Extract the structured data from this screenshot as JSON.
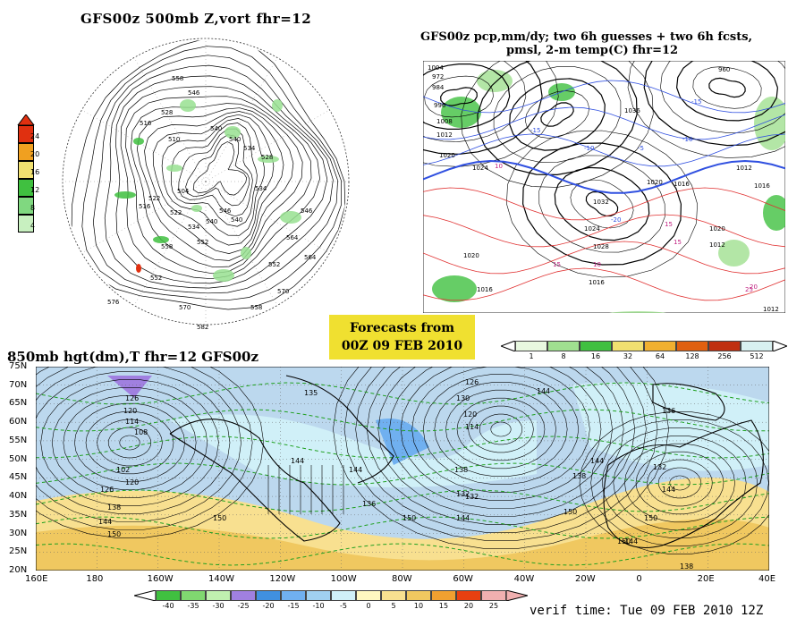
{
  "titles": {
    "panel1": "GFS00z   500mb Z,vort     fhr=12",
    "panel2_line1": "GFS00z pcp,mm/dy; two 6h guesses + two 6h fcsts,",
    "panel2_line2": "pmsl, 2-m temp(C)  fhr=12",
    "panel3": "850mb hgt(dm),T   fhr=12 GFS00z"
  },
  "forecast_box": {
    "line1": "Forecasts from",
    "line2": "00Z 09 FEB 2010"
  },
  "verif_time": "verif time: Tue 09 FEB 2010 12Z",
  "vort_colorbar": {
    "labels": [
      "24",
      "20",
      "16",
      "12",
      "8",
      "4"
    ],
    "colors": [
      "#e03010",
      "#f0a020",
      "#f0e070",
      "#40c040",
      "#80d880",
      "#c8f0c0"
    ]
  },
  "pcp_colorbar": {
    "labels": [
      "1",
      "8",
      "16",
      "32",
      "64",
      "128",
      "256",
      "512"
    ],
    "colors": [
      "#e8f8e0",
      "#a0e090",
      "#40c040",
      "#f0e070",
      "#f0b030",
      "#e06010",
      "#c03010",
      "#d8f0f0"
    ]
  },
  "temp_colorbar": {
    "labels": [
      "-40",
      "-35",
      "-30",
      "-25",
      "-20",
      "-15",
      "-10",
      "-5",
      "0",
      "5",
      "10",
      "15",
      "20",
      "25"
    ],
    "colors": [
      "#40c040",
      "#80d870",
      "#c0f0b0",
      "#a080e0",
      "#4090e0",
      "#70b0f0",
      "#a0d0f0",
      "#d0f0f8",
      "#fff8c0",
      "#f8e090",
      "#f0c860",
      "#f0a030",
      "#e84010",
      "#f0b0b0"
    ]
  },
  "map850": {
    "lat_labels": [
      "75N",
      "70N",
      "65N",
      "60N",
      "55N",
      "50N",
      "45N",
      "40N",
      "35N",
      "30N",
      "25N",
      "20N"
    ],
    "lon_labels": [
      "160E",
      "180",
      "160W",
      "140W",
      "120W",
      "100W",
      "80W",
      "60W",
      "40W",
      "20W",
      "0",
      "20E",
      "40E"
    ],
    "contour_labels": [
      "126",
      "120",
      "114",
      "108",
      "102",
      "120",
      "126",
      "138",
      "144",
      "150",
      "135",
      "144",
      "150",
      "144",
      "136",
      "150",
      "144",
      "132",
      "138",
      "126",
      "120",
      "114",
      "132",
      "138",
      "150",
      "144",
      "144",
      "150",
      "132",
      "136",
      "138",
      "144",
      "150",
      "130",
      "144"
    ]
  },
  "polar": {
    "contour_labels": [
      "558",
      "546",
      "528",
      "516",
      "510",
      "540",
      "540",
      "534",
      "522",
      "504",
      "516",
      "552",
      "534",
      "540",
      "522",
      "558",
      "546",
      "534",
      "528",
      "540",
      "552",
      "570",
      "576",
      "570",
      "558",
      "582",
      "564",
      "546",
      "552",
      "564"
    ]
  },
  "na_map": {
    "contour_labels": [
      "1004",
      "972",
      "984",
      "996",
      "1008",
      "1012",
      "1020",
      "1024",
      "1020",
      "1016",
      "1032",
      "1028",
      "1024",
      "1036",
      "1020",
      "1016",
      "1012",
      "1016",
      "1012",
      "1020",
      "960",
      "1016",
      "1012",
      "-15",
      "-10",
      "-5",
      "-20",
      "-15",
      "-10",
      "10",
      "15",
      "15",
      "20",
      "25",
      "15",
      "10"
    ]
  }
}
